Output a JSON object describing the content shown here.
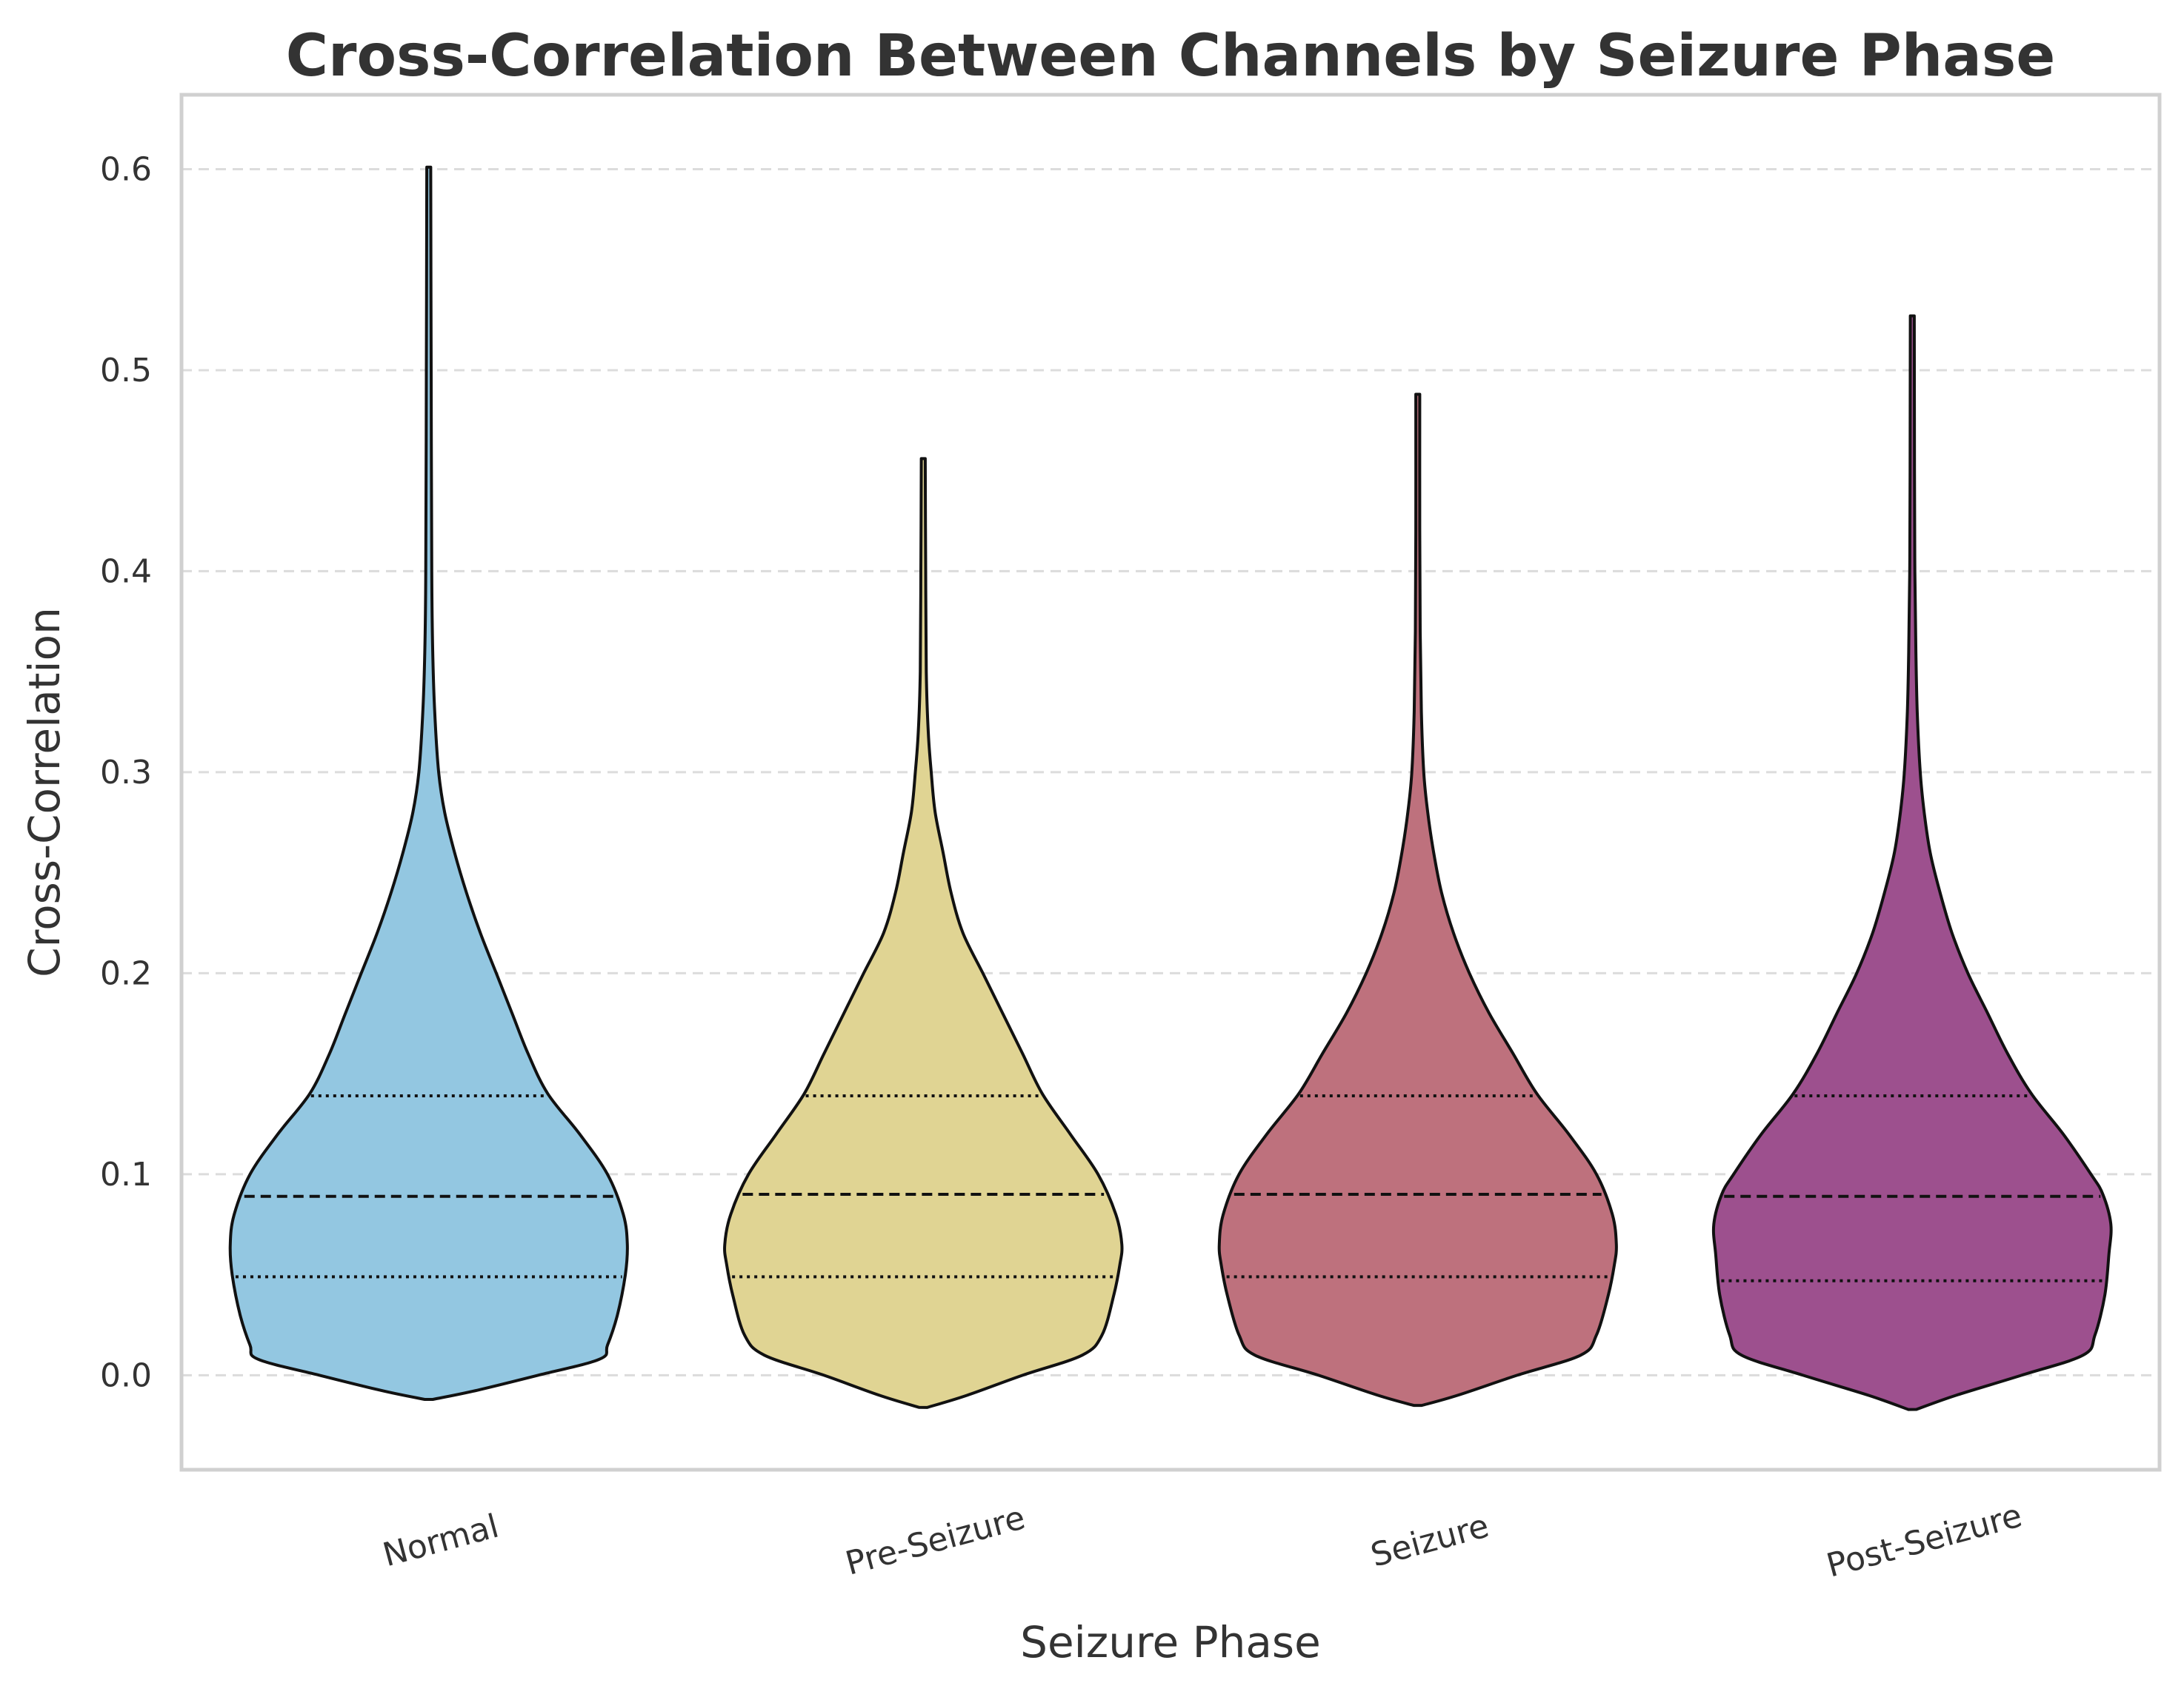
{
  "chart_data": {
    "type": "violin",
    "title": "Cross-Correlation Between Channels by Seizure Phase",
    "xlabel": "Seizure Phase",
    "ylabel": "Cross-Correlation",
    "ylim": [
      -0.047,
      0.637
    ],
    "yticks": [
      "0.0",
      "0.1",
      "0.2",
      "0.3",
      "0.4",
      "0.5",
      "0.6"
    ],
    "grid": "horizontal dashed",
    "categories": [
      "Normal",
      "Pre-Seizure",
      "Seizure",
      "Post-Seizure"
    ],
    "series": [
      {
        "name": "Normal",
        "color": "#93c7e1",
        "min": -0.012,
        "q1": 0.049,
        "median": 0.089,
        "q3": 0.139,
        "max": 0.601,
        "profile": [
          [
            -0.012,
            0.02
          ],
          [
            -0.008,
            0.22
          ],
          [
            0.0,
            0.55
          ],
          [
            0.008,
            0.86
          ],
          [
            0.015,
            0.9
          ],
          [
            0.03,
            0.95
          ],
          [
            0.05,
            0.99
          ],
          [
            0.065,
            1.0
          ],
          [
            0.08,
            0.98
          ],
          [
            0.1,
            0.9
          ],
          [
            0.12,
            0.76
          ],
          [
            0.14,
            0.6
          ],
          [
            0.16,
            0.5
          ],
          [
            0.18,
            0.42
          ],
          [
            0.2,
            0.34
          ],
          [
            0.22,
            0.26
          ],
          [
            0.24,
            0.19
          ],
          [
            0.26,
            0.13
          ],
          [
            0.28,
            0.08
          ],
          [
            0.3,
            0.05
          ],
          [
            0.33,
            0.03
          ],
          [
            0.36,
            0.02
          ],
          [
            0.4,
            0.015
          ],
          [
            0.5,
            0.012
          ],
          [
            0.601,
            0.01
          ]
        ]
      },
      {
        "name": "Pre-Seizure",
        "color": "#e0d493",
        "min": -0.016,
        "q1": 0.049,
        "median": 0.09,
        "q3": 0.139,
        "max": 0.456,
        "profile": [
          [
            -0.016,
            0.02
          ],
          [
            -0.01,
            0.22
          ],
          [
            0.0,
            0.5
          ],
          [
            0.01,
            0.8
          ],
          [
            0.02,
            0.9
          ],
          [
            0.04,
            0.96
          ],
          [
            0.055,
            0.99
          ],
          [
            0.065,
            1.0
          ],
          [
            0.08,
            0.97
          ],
          [
            0.1,
            0.88
          ],
          [
            0.12,
            0.74
          ],
          [
            0.14,
            0.6
          ],
          [
            0.16,
            0.5
          ],
          [
            0.18,
            0.4
          ],
          [
            0.2,
            0.3
          ],
          [
            0.22,
            0.2
          ],
          [
            0.24,
            0.14
          ],
          [
            0.26,
            0.1
          ],
          [
            0.28,
            0.06
          ],
          [
            0.3,
            0.04
          ],
          [
            0.32,
            0.025
          ],
          [
            0.35,
            0.015
          ],
          [
            0.4,
            0.012
          ],
          [
            0.456,
            0.01
          ]
        ]
      },
      {
        "name": "Seizure",
        "color": "#be717d",
        "min": -0.015,
        "q1": 0.049,
        "median": 0.09,
        "q3": 0.139,
        "max": 0.488,
        "profile": [
          [
            -0.015,
            0.02
          ],
          [
            -0.01,
            0.2
          ],
          [
            0.0,
            0.5
          ],
          [
            0.01,
            0.82
          ],
          [
            0.02,
            0.9
          ],
          [
            0.04,
            0.96
          ],
          [
            0.055,
            0.99
          ],
          [
            0.065,
            1.0
          ],
          [
            0.08,
            0.98
          ],
          [
            0.1,
            0.9
          ],
          [
            0.12,
            0.76
          ],
          [
            0.14,
            0.6
          ],
          [
            0.16,
            0.48
          ],
          [
            0.18,
            0.36
          ],
          [
            0.2,
            0.26
          ],
          [
            0.22,
            0.18
          ],
          [
            0.24,
            0.12
          ],
          [
            0.26,
            0.08
          ],
          [
            0.28,
            0.05
          ],
          [
            0.3,
            0.03
          ],
          [
            0.33,
            0.018
          ],
          [
            0.37,
            0.012
          ],
          [
            0.42,
            0.01
          ],
          [
            0.488,
            0.01
          ]
        ]
      },
      {
        "name": "Post-Seizure",
        "color": "#9d508e",
        "min": -0.017,
        "q1": 0.047,
        "median": 0.089,
        "q3": 0.139,
        "max": 0.527,
        "profile": [
          [
            -0.017,
            0.02
          ],
          [
            -0.01,
            0.22
          ],
          [
            0.0,
            0.55
          ],
          [
            0.01,
            0.86
          ],
          [
            0.02,
            0.92
          ],
          [
            0.04,
            0.97
          ],
          [
            0.06,
            0.99
          ],
          [
            0.075,
            1.0
          ],
          [
            0.09,
            0.96
          ],
          [
            0.1,
            0.9
          ],
          [
            0.12,
            0.76
          ],
          [
            0.14,
            0.6
          ],
          [
            0.16,
            0.48
          ],
          [
            0.18,
            0.38
          ],
          [
            0.2,
            0.28
          ],
          [
            0.22,
            0.2
          ],
          [
            0.24,
            0.14
          ],
          [
            0.26,
            0.09
          ],
          [
            0.28,
            0.06
          ],
          [
            0.3,
            0.04
          ],
          [
            0.33,
            0.025
          ],
          [
            0.36,
            0.018
          ],
          [
            0.4,
            0.013
          ],
          [
            0.45,
            0.011
          ],
          [
            0.527,
            0.01
          ]
        ]
      }
    ]
  }
}
